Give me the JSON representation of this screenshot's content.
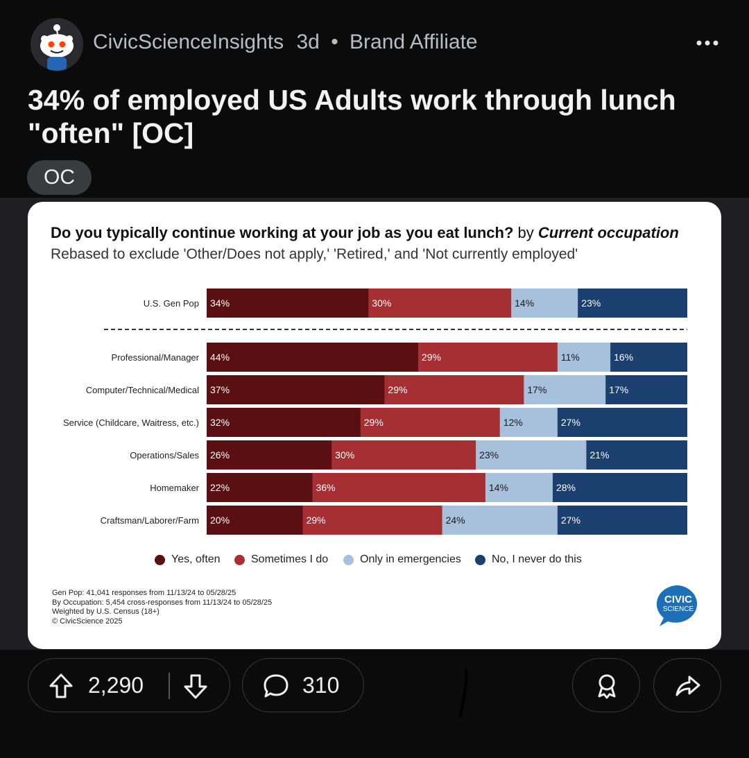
{
  "post": {
    "author": "CivicScienceInsights",
    "age": "3d",
    "separator": "•",
    "badge": "Brand Affiliate",
    "title": "34% of employed US Adults work through lunch \"often\" [OC]",
    "flair": "OC"
  },
  "chart": {
    "title_bold": "Do you typically continue working at your job as you eat lunch?",
    "title_by": " by ",
    "title_italic": "Current occupation",
    "subtitle": "Rebased to exclude 'Other/Does not apply,' 'Retired,' and 'Not currently employed'",
    "footnotes": [
      "Gen Pop: 41,041 responses from 11/13/24 to 05/28/25",
      "By Occupation: 5,454 cross-responses from 11/13/24 to 05/28/25",
      "Weighted by U.S. Census (18+)",
      "© CivicScience 2025"
    ],
    "logo_text": [
      "CIVIC",
      "SCIENCE"
    ]
  },
  "chart_data": {
    "type": "bar",
    "orientation": "horizontal-stacked-100",
    "categories": [
      "U.S. Gen Pop",
      "Professional/Manager",
      "Computer/Technical/Medical",
      "Service (Childcare, Waitress, etc.)",
      "Operations/Sales",
      "Homemaker",
      "Craftsman/Laborer/Farm"
    ],
    "series": [
      {
        "name": "Yes, often",
        "color": "#5a1012",
        "values": [
          34,
          44,
          37,
          32,
          26,
          22,
          20
        ]
      },
      {
        "name": "Sometimes I do",
        "color": "#a52f32",
        "values": [
          30,
          29,
          29,
          29,
          30,
          36,
          29
        ]
      },
      {
        "name": "Only in emergencies",
        "color": "#a7c0dc",
        "values": [
          14,
          11,
          17,
          12,
          23,
          14,
          24
        ]
      },
      {
        "name": "No, I never do this",
        "color": "#1b3f6e",
        "values": [
          23,
          16,
          17,
          27,
          21,
          28,
          27
        ]
      }
    ],
    "value_suffix": "%",
    "legend": "bottom",
    "grid": false
  },
  "actions": {
    "upvotes": "2,290",
    "comments": "310"
  },
  "colors": {
    "background": "#0b0b0c",
    "card": "#ffffff",
    "pill_border": "#3b3c40",
    "logo_blue": "#1d6fb8"
  }
}
